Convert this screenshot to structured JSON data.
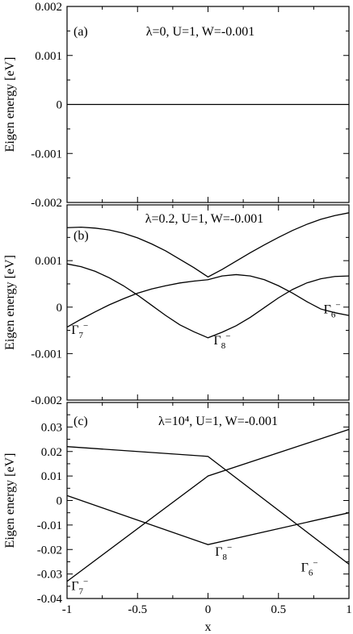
{
  "chart_data": [
    {
      "type": "line",
      "panel_label": "(a)",
      "title": "λ=0, U=1, W=-0.001",
      "xlabel": "",
      "ylabel": "Eigen energy [eV]",
      "xlim": [
        -1,
        1
      ],
      "ylim": [
        -0.002,
        0.002
      ],
      "yticks": [
        -0.002,
        -0.001,
        0,
        0.001,
        0.002
      ],
      "ytick_labels": [
        "-0.002",
        "-0.001",
        "0",
        "0.001",
        "0.002"
      ],
      "series": [
        {
          "x": [
            -1,
            1
          ],
          "y": [
            0,
            0
          ]
        }
      ],
      "annotations": []
    },
    {
      "type": "line",
      "panel_label": "(b)",
      "title": "λ=0.2, U=1, W=-0.001",
      "xlabel": "",
      "ylabel": "Eigen energy [eV]",
      "xlim": [
        -1,
        1
      ],
      "ylim": [
        -0.002,
        0.0022
      ],
      "yticks": [
        -0.002,
        -0.001,
        0,
        0.001
      ],
      "ytick_labels": [
        "-0.002",
        "-0.001",
        "0",
        "0.001"
      ],
      "series": [
        {
          "x": [
            -1,
            -0.9,
            -0.8,
            -0.7,
            -0.6,
            -0.5,
            -0.4,
            -0.3,
            -0.2,
            -0.1,
            0,
            0.1,
            0.2,
            0.3,
            0.4,
            0.5,
            0.6,
            0.7,
            0.8,
            0.9,
            1
          ],
          "y": [
            0.00171,
            0.00172,
            0.0017,
            0.00166,
            0.00159,
            0.00149,
            0.00136,
            0.00121,
            0.00103,
            0.00085,
            0.00065,
            0.00081,
            0.00099,
            0.00117,
            0.00134,
            0.0015,
            0.00165,
            0.00178,
            0.00189,
            0.00197,
            0.00203
          ]
        },
        {
          "x": [
            -1,
            -0.9,
            -0.8,
            -0.7,
            -0.6,
            -0.5,
            -0.4,
            -0.3,
            -0.2,
            -0.1,
            0,
            0.1,
            0.2,
            0.3,
            0.4,
            0.5,
            0.6,
            0.7,
            0.8,
            0.9,
            1
          ],
          "y": [
            0.00093,
            0.00087,
            0.00077,
            0.00063,
            0.00046,
            0.00026,
            4e-05,
            -0.00018,
            -0.00038,
            -0.00053,
            -0.00066,
            -0.00054,
            -0.0004,
            -0.00022,
            -1e-05,
            0.0002,
            0.00038,
            0.00052,
            0.00061,
            0.00066,
            0.00067
          ]
        },
        {
          "x": [
            -1,
            -0.9,
            -0.8,
            -0.7,
            -0.6,
            -0.5,
            -0.4,
            -0.3,
            -0.2,
            -0.1,
            0,
            0.1,
            0.2,
            0.3,
            0.4,
            0.5,
            0.6,
            0.7,
            0.8,
            0.9,
            1
          ],
          "y": [
            -0.00043,
            -0.00026,
            -0.0001,
            5e-05,
            0.00018,
            0.0003,
            0.00039,
            0.00046,
            0.00052,
            0.00056,
            0.00059,
            0.00067,
            0.0007,
            0.00067,
            0.00059,
            0.00046,
            0.0003,
            0.00012,
            -4e-05,
            -0.00012,
            -0.00018
          ]
        }
      ],
      "annotations": [
        {
          "text": "Γ",
          "sup": "7",
          "supsign": "−",
          "x": -0.97,
          "y": -0.00058
        },
        {
          "text": "Γ",
          "sup": "8",
          "supsign": "−",
          "x": 0.04,
          "y": -0.0008
        },
        {
          "text": "Γ",
          "sup": "6",
          "supsign": "−",
          "x": 0.82,
          "y": -0.00013
        }
      ]
    },
    {
      "type": "line",
      "panel_label": "(c)",
      "title": "λ=10⁴, U=1, W=-0.001",
      "xlabel": "x",
      "ylabel": "Eigen energy [eV]",
      "xlim": [
        -1,
        1
      ],
      "ylim": [
        -0.04,
        0.04
      ],
      "yticks": [
        -0.04,
        -0.03,
        -0.02,
        -0.01,
        0,
        0.01,
        0.02,
        0.03
      ],
      "ytick_labels": [
        "-0.04",
        "-0.03",
        "-0.02",
        "-0.01",
        "0",
        "0.01",
        "0.02",
        "0.03"
      ],
      "xticks": [
        -1,
        -0.5,
        0,
        0.5,
        1
      ],
      "xtick_labels": [
        "-1",
        "-0.5",
        "0",
        "0.5",
        "1"
      ],
      "series": [
        {
          "x": [
            -1,
            0,
            1
          ],
          "y": [
            0.022,
            0.018,
            -0.026
          ]
        },
        {
          "x": [
            -1,
            0,
            1
          ],
          "y": [
            0.002,
            -0.018,
            -0.005
          ]
        },
        {
          "x": [
            -1,
            0,
            1
          ],
          "y": [
            -0.033,
            0.01,
            0.029
          ]
        }
      ],
      "annotations": [
        {
          "text": "Γ",
          "sup": "7",
          "supsign": "−",
          "x": -0.97,
          "y": -0.0365
        },
        {
          "text": "Γ",
          "sup": "8",
          "supsign": "−",
          "x": 0.05,
          "y": -0.0225
        },
        {
          "text": "Γ",
          "sup": "6",
          "supsign": "−",
          "x": 0.66,
          "y": -0.029
        }
      ]
    }
  ]
}
